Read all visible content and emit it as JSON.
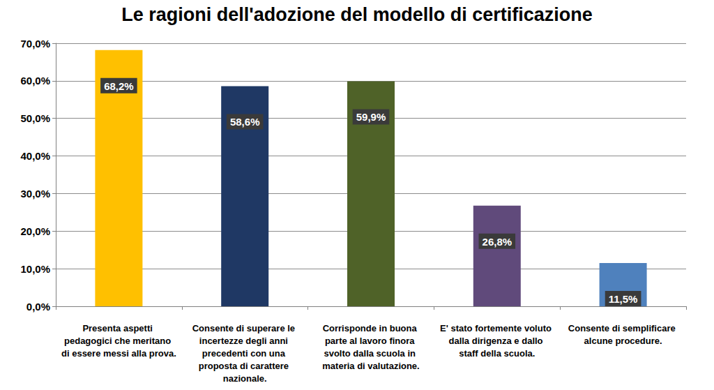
{
  "chart_data": {
    "type": "bar",
    "title": "Le ragioni dell'adozione del modello di certificazione",
    "categories": [
      "Presenta aspetti pedagogici che meritano di essere messi alla prova.",
      "Consente di superare le incertezze degli anni precedenti con una proposta di carattere nazionale.",
      "Corrisponde in buona parte al lavoro finora svolto dalla scuola in materia di valutazione.",
      "E' stato fortemente voluto dalla dirigenza e dallo staff della scuola.",
      "Consente di semplificare alcune procedure."
    ],
    "values": [
      68.2,
      58.6,
      59.9,
      26.8,
      11.5
    ],
    "value_labels": [
      "68,2%",
      "58,6%",
      "59,9%",
      "26,8%",
      "11,5%"
    ],
    "colors": [
      "#ffc000",
      "#1f3864",
      "#4f6228",
      "#604a7b",
      "#4f81bd"
    ],
    "ylim": [
      0,
      70
    ],
    "yticks": [
      {
        "value": 0,
        "label": "0,0%"
      },
      {
        "value": 10,
        "label": "10,0%"
      },
      {
        "value": 20,
        "label": "20,0%"
      },
      {
        "value": 30,
        "label": "30,0%"
      },
      {
        "value": 40,
        "label": "40,0%"
      },
      {
        "value": 50,
        "label": "50,0%"
      },
      {
        "value": 60,
        "label": "60,0%"
      },
      {
        "value": 70,
        "label": "70,0%"
      }
    ],
    "grid": true,
    "data_labels": true
  }
}
